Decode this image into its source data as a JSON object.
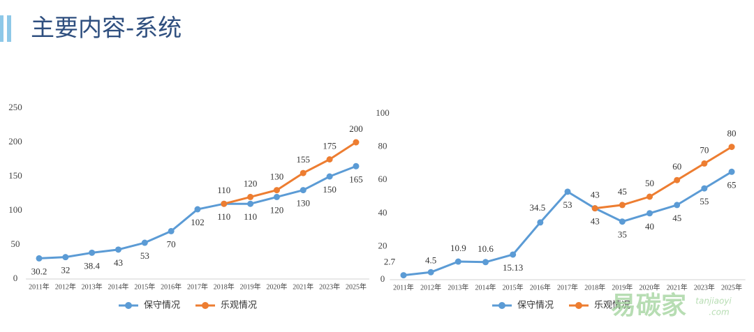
{
  "title": "主要内容-系统",
  "watermark": {
    "brand": "易碳家",
    "site": "tanjiaoyi",
    "suffix": ".com"
  },
  "chart_data": [
    {
      "type": "line",
      "categories": [
        "2011年",
        "2012年",
        "2013年",
        "2014年",
        "2015年",
        "2016年",
        "2017年",
        "2018年",
        "2019年",
        "2020年",
        "2021年",
        "2023年",
        "2025年"
      ],
      "series": [
        {
          "name": "保守情况",
          "color": "#5b9bd5",
          "values": [
            30.2,
            32,
            38.4,
            43,
            53,
            70,
            102,
            110,
            110,
            120,
            130,
            150,
            165
          ]
        },
        {
          "name": "乐观情况",
          "color": "#ed7d31",
          "values": [
            null,
            null,
            null,
            null,
            null,
            null,
            null,
            110,
            120,
            130,
            155,
            175,
            200
          ]
        }
      ],
      "ylim": [
        0,
        250
      ],
      "yticks": [
        0,
        50,
        100,
        150,
        200,
        250
      ],
      "legend": "bottom"
    },
    {
      "type": "line",
      "categories": [
        "2011年",
        "2012年",
        "2013年",
        "2014年",
        "2015年",
        "2016年",
        "2017年",
        "2018年",
        "2019年",
        "2020年",
        "2021年",
        "2023年",
        "2025年"
      ],
      "series": [
        {
          "name": "保守情况",
          "color": "#5b9bd5",
          "values": [
            2.7,
            4.5,
            10.9,
            10.6,
            15.13,
            34.5,
            53,
            43,
            35,
            40,
            45,
            55,
            65
          ]
        },
        {
          "name": "乐观情况",
          "color": "#ed7d31",
          "values": [
            null,
            null,
            null,
            null,
            null,
            null,
            null,
            43,
            45,
            50,
            60,
            70,
            80
          ]
        }
      ],
      "ylim": [
        0,
        100
      ],
      "yticks": [
        0,
        20,
        40,
        60,
        80,
        100
      ],
      "legend": "bottom"
    }
  ]
}
